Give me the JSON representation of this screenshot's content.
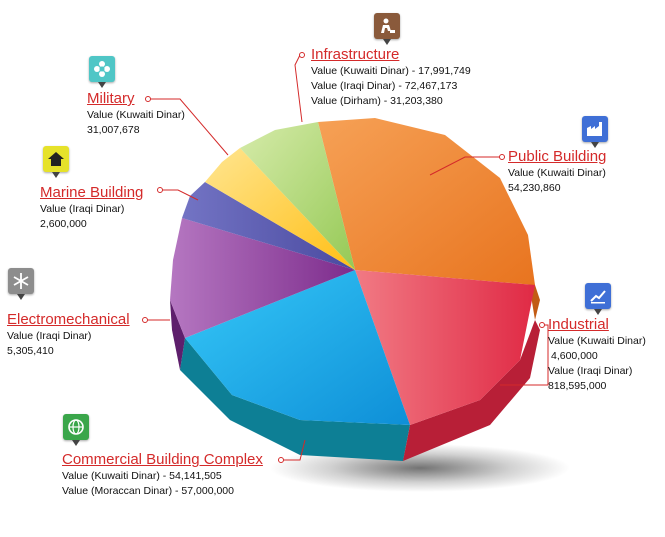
{
  "chart_data": {
    "type": "pie",
    "title": "",
    "slices": [
      {
        "category": "Infrastructure",
        "values": [
          "Value (Kuwaiti Dinar) - 17,991,749",
          "Value (Iraqi Dinar) - 72,467,173",
          "Value (Dirham) - 31,203,380"
        ],
        "color": "#f2812e",
        "icon": "construction-worker-icon"
      },
      {
        "category": "Public Building",
        "values": [
          "Value (Kuwaiti Dinar)",
          "54,230,860"
        ],
        "color": "#f2812e",
        "icon": "factory-icon"
      },
      {
        "category": "Industrial",
        "values": [
          "Value (Kuwaiti Dinar)",
          "4,600,000",
          "Value (Iraqi Dinar)",
          "818,595,000"
        ],
        "color": "#e8354f",
        "icon": "chart-trend-icon"
      },
      {
        "category": "Commercial Building Complex",
        "values": [
          "Value (Kuwaiti Dinar) - 54,141,505",
          "Value (Moraccan Dinar) - 57,000,000"
        ],
        "color": "#1aa7e8",
        "icon": "globe-icon"
      },
      {
        "category": "Electromechanical",
        "values": [
          "Value (Iraqi Dinar)",
          "5,305,410"
        ],
        "color": "#8e3f9a",
        "icon": "snowflake-icon"
      },
      {
        "category": "Marine Building",
        "values": [
          "Value (Iraqi Dinar)",
          "2,600,000"
        ],
        "color": "#5453a8",
        "icon": "house-icon"
      },
      {
        "category": "Military",
        "values": [
          "Value (Kuwaiti Dinar)",
          "31,007,678"
        ],
        "color": "#ffc82a",
        "icon": "flower-icon"
      },
      {
        "category": "",
        "values": [],
        "color": "#a9d56a",
        "icon": ""
      }
    ],
    "slice_sequence": [
      "Infrastructure-segment",
      "Industrial",
      "Commercial Building Complex",
      "Electromechanical",
      "Marine Building",
      "Military",
      "light-green"
    ]
  },
  "icon_colors": {
    "construction": "#8a5a3b",
    "factory": "#3f6fd6",
    "chart": "#3f6fd6",
    "globe": "#3aa64a",
    "snowflake": "#8d8d8d",
    "house": "#e6e22a",
    "flower": "#4fc6c6"
  },
  "label_color": "#d42a2a"
}
